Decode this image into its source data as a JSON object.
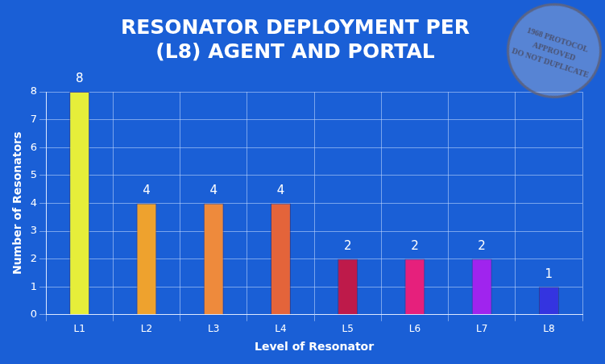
{
  "chart_data": {
    "type": "bar",
    "title": "RESONATOR DEPLOYMENT PER (L8) AGENT AND PORTAL",
    "x_label": "Level of Resonator",
    "y_label": "Number of Resonators",
    "categories": [
      "L1",
      "L2",
      "L3",
      "L4",
      "L5",
      "L6",
      "L7",
      "L8"
    ],
    "values": [
      8,
      4,
      4,
      4,
      2,
      2,
      2,
      1
    ],
    "colors": [
      "#e6ee3a",
      "#eea22e",
      "#ee8a3c",
      "#e4643a",
      "#be1a4a",
      "#e6207c",
      "#a024ee",
      "#3434e0"
    ],
    "ylim": [
      0,
      8
    ],
    "yticks": [
      0,
      1,
      2,
      3,
      4,
      5,
      6,
      7,
      8
    ],
    "grid": true,
    "data_labels": true,
    "annotations": [
      "1968 PROTOCOL",
      "APPROVED",
      "DO NOT DUPLICATE"
    ]
  }
}
